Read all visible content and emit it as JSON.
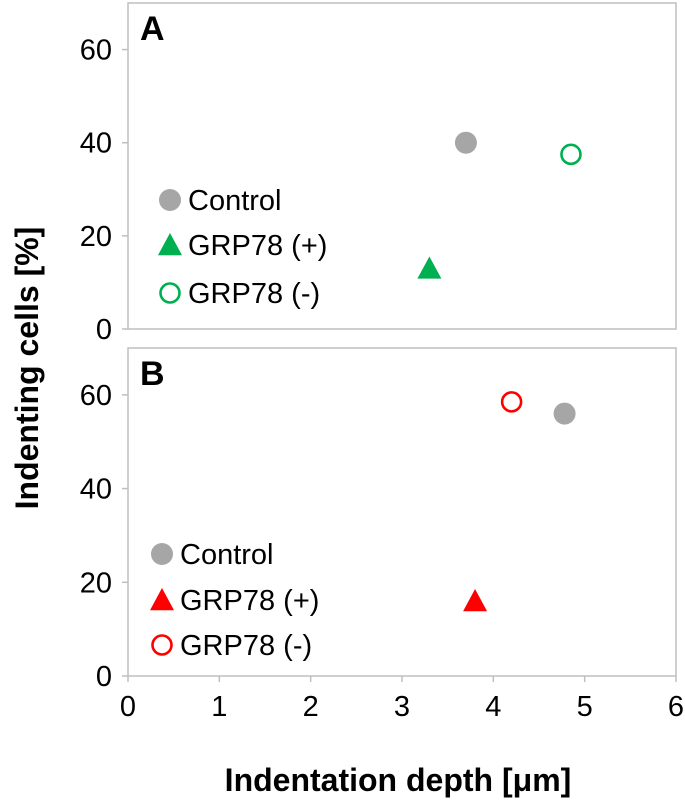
{
  "chart_data": [
    {
      "type": "scatter",
      "panel_label": "A",
      "xlim": [
        0,
        6
      ],
      "ylim": [
        0,
        70
      ],
      "y_ticks": [
        0,
        20,
        40,
        60
      ],
      "x_tick_labels_shown": false,
      "grid": false,
      "legend_position": "left",
      "series": [
        {
          "name": "Control",
          "marker": "filled-circle",
          "color": "#a6a6a6",
          "points": [
            {
              "x": 3.7,
              "y": 40
            }
          ]
        },
        {
          "name": "GRP78 (+)",
          "marker": "filled-triangle",
          "color": "#00b050",
          "points": [
            {
              "x": 3.3,
              "y": 13
            }
          ]
        },
        {
          "name": "GRP78 (-)",
          "marker": "open-circle",
          "color": "#00b050",
          "points": [
            {
              "x": 4.85,
              "y": 37.5
            }
          ]
        }
      ]
    },
    {
      "type": "scatter",
      "panel_label": "B",
      "xlim": [
        0,
        6
      ],
      "ylim": [
        0,
        70
      ],
      "y_ticks": [
        0,
        20,
        40,
        60
      ],
      "x_ticks": [
        0,
        1,
        2,
        3,
        4,
        5,
        6
      ],
      "x_tick_labels_shown": true,
      "grid": false,
      "legend_position": "left",
      "series": [
        {
          "name": "Control",
          "marker": "filled-circle",
          "color": "#a6a6a6",
          "points": [
            {
              "x": 4.78,
              "y": 56
            }
          ]
        },
        {
          "name": "GRP78 (+)",
          "marker": "filled-triangle",
          "color": "#ff0000",
          "points": [
            {
              "x": 3.8,
              "y": 16
            }
          ]
        },
        {
          "name": "GRP78 (-)",
          "marker": "open-circle",
          "color": "#ff0000",
          "points": [
            {
              "x": 4.2,
              "y": 58.5
            }
          ]
        }
      ]
    }
  ],
  "shared_axes": {
    "xlabel": "Indentation depth [μm]",
    "ylabel": "Indenting cells [%]"
  },
  "colors": {
    "frame": "#bfbfbf",
    "text": "#000000"
  }
}
